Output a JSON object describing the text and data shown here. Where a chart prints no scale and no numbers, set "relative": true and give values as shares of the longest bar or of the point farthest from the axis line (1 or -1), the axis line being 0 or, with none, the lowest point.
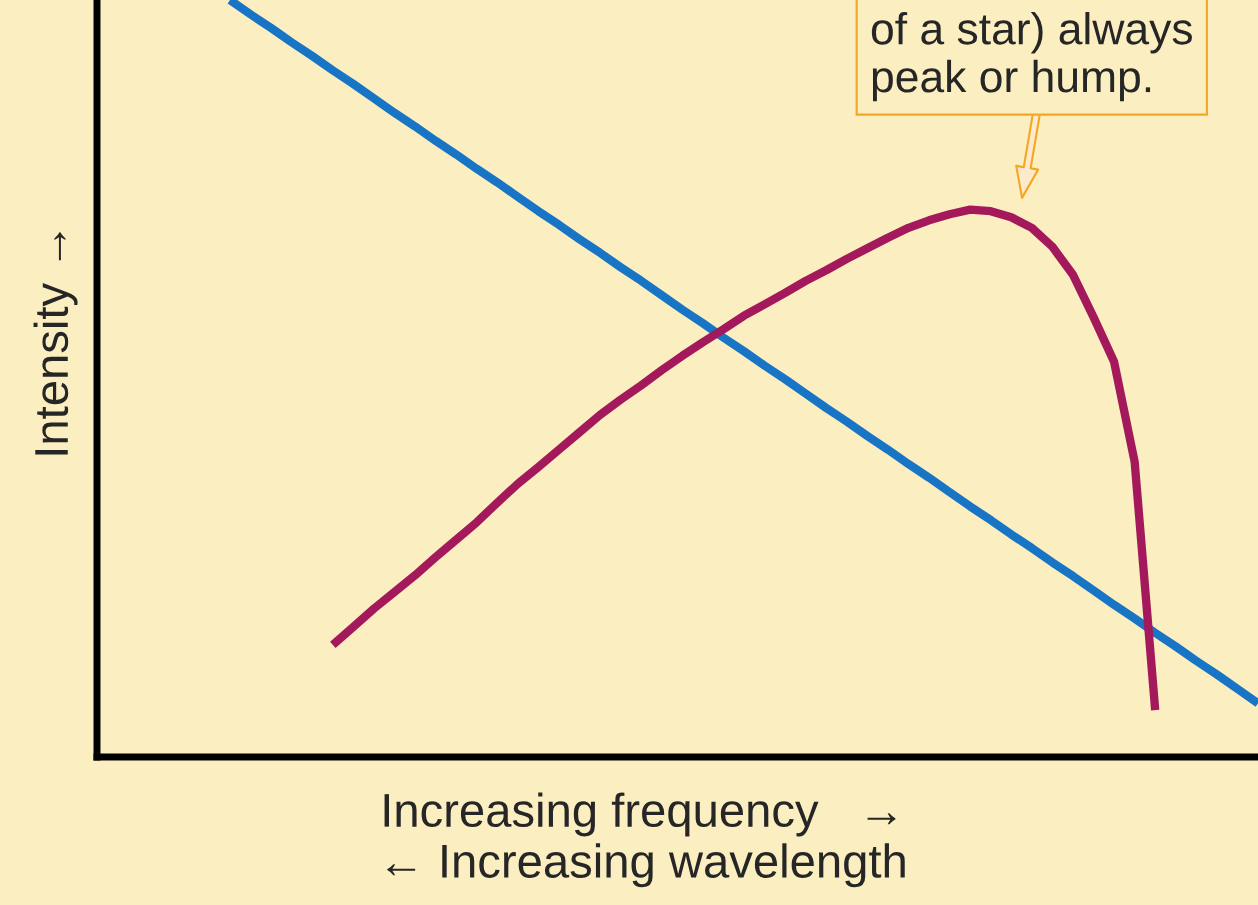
{
  "chart_data": {
    "type": "line",
    "relative": true,
    "xlabel": "Increasing frequency   →\n← Increasing wavelength",
    "ylabel": "Intensity →",
    "categories": [
      null,
      null,
      null,
      null,
      null,
      null,
      null,
      null,
      null,
      null,
      null,
      null,
      null,
      null,
      null,
      null,
      null,
      null,
      null,
      null,
      null,
      null,
      null,
      null,
      null,
      null,
      null,
      null,
      null,
      null,
      null,
      null,
      null,
      null,
      null,
      null,
      null,
      null,
      null,
      null,
      null,
      null,
      null,
      null,
      null,
      null,
      null,
      null,
      null,
      null,
      null
    ],
    "series": [
      {
        "color": "#1874c4",
        "values": [
          1,
          0.981,
          0.963,
          0.944,
          0.926,
          0.907,
          0.889,
          0.87,
          0.851,
          0.833,
          0.814,
          0.796,
          0.777,
          0.759,
          0.74,
          0.721,
          0.703,
          0.684,
          0.666,
          0.647,
          0.629,
          0.61,
          0.591,
          0.573,
          0.554,
          0.536,
          0.517,
          0.499,
          0.48,
          0.461,
          0.443,
          0.424,
          0.406,
          0.387,
          0.369,
          0.35,
          0.331,
          0.313,
          0.294,
          0.276,
          0.257,
          0.239,
          0.22,
          0.201,
          0.183,
          0.164,
          0.146,
          0.127,
          0.109,
          0.09,
          0.071
        ]
      },
      {
        "color": "#a3195b",
        "values": [
          null,
          null,
          null,
          null,
          null,
          0.148,
          0.172,
          0.196,
          0.218,
          0.24,
          0.264,
          0.287,
          0.31,
          0.336,
          0.361,
          0.383,
          0.406,
          0.429,
          0.452,
          0.472,
          0.491,
          0.511,
          0.53,
          0.548,
          0.565,
          0.583,
          0.598,
          0.613,
          0.629,
          0.643,
          0.658,
          0.672,
          0.686,
          0.699,
          0.709,
          0.717,
          0.723,
          0.721,
          0.713,
          0.699,
          0.674,
          0.637,
          0.581,
          0.522,
          0.39,
          0.062,
          null,
          null,
          null,
          null,
          null
        ]
      }
    ],
    "annotations": [
      "of a star) always\npeak or hump."
    ]
  }
}
